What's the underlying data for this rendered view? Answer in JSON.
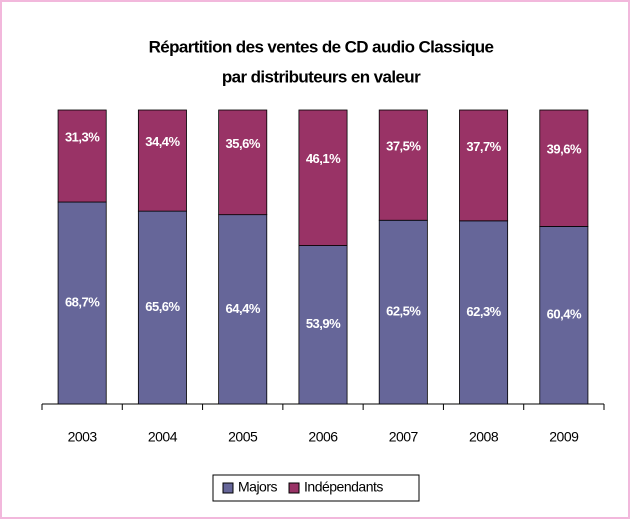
{
  "chart_data": {
    "type": "stacked_bar",
    "title": [
      "Répartition des ventes de CD audio Classique",
      "par distributeurs en valeur"
    ],
    "categories": [
      "2003",
      "2004",
      "2005",
      "2006",
      "2007",
      "2008",
      "2009"
    ],
    "series": [
      {
        "name": "Majors",
        "color": "#666699",
        "values": [
          68.7,
          65.6,
          64.4,
          53.9,
          62.5,
          62.3,
          60.4
        ],
        "value_labels": [
          "68,7%",
          "65,6%",
          "64,4%",
          "53,9%",
          "62,5%",
          "62,3%",
          "60,4%"
        ]
      },
      {
        "name": "Indépendants",
        "color": "#993366",
        "values": [
          31.3,
          34.4,
          35.6,
          46.1,
          37.5,
          37.7,
          39.6
        ],
        "value_labels": [
          "31,3%",
          "34,4%",
          "35,6%",
          "46,1%",
          "37,5%",
          "37,7%",
          "39,6%"
        ]
      }
    ],
    "ylim": [
      0,
      100
    ],
    "legend": "bottom"
  }
}
